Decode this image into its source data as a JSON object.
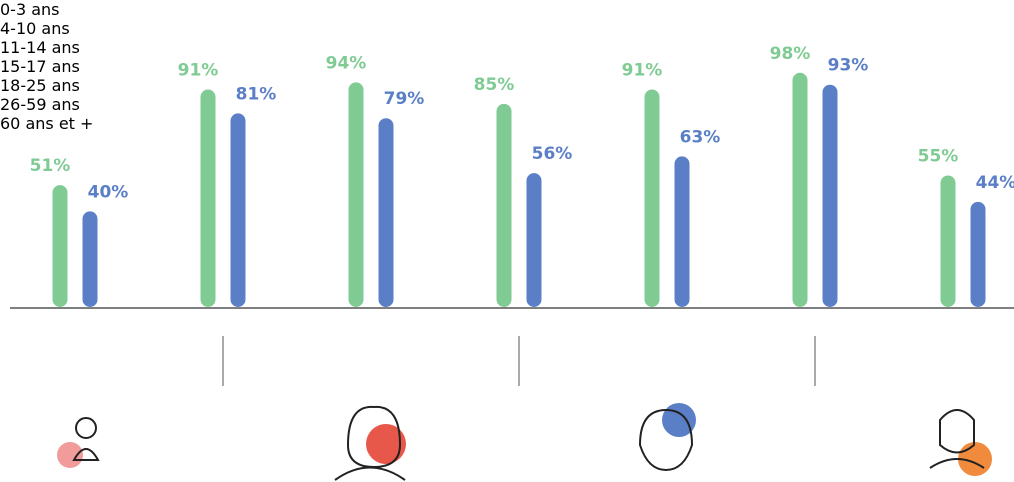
{
  "chart_data": {
    "type": "bar",
    "categories": [
      "0-3\nans",
      "4-10\nans",
      "11-14\nans",
      "15-17\nans",
      "18-25\nans",
      "26-59\nans",
      "60 ans\net +"
    ],
    "series": [
      {
        "color": "#7fcb93",
        "values": [
          51,
          91,
          94,
          85,
          91,
          98,
          55
        ],
        "value_labels": [
          "51%",
          "91%",
          "94%",
          "85%",
          "91%",
          "98%",
          "55%"
        ]
      },
      {
        "color": "#5b7fc7",
        "values": [
          40,
          81,
          79,
          56,
          63,
          93,
          44
        ],
        "value_labels": [
          "40%",
          "81%",
          "79%",
          "56%",
          "63%",
          "93%",
          "44%"
        ]
      }
    ],
    "ylim": [
      0,
      100
    ]
  }
}
